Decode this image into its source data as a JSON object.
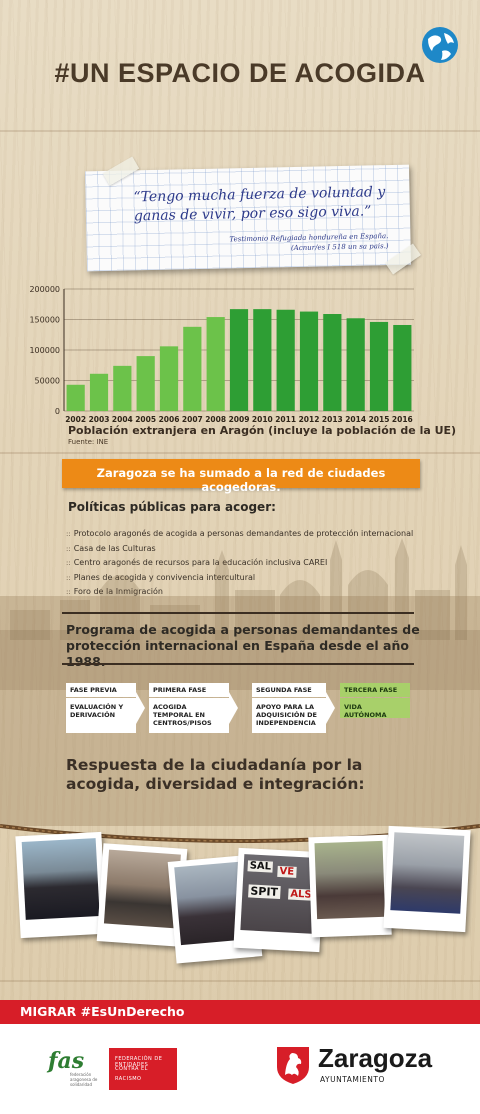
{
  "poster": {
    "title": "#UN ESPACIO DE ACOGIDA",
    "quote": {
      "text": "“Tengo mucha fuerza de voluntad y ganas de vivir, por eso sigo viva.”",
      "source_line1": "Testimonio Refugiada hondureña en España.",
      "source_line2": "(Acnur/es I 518 un sa pais.)"
    },
    "banner": "Zaragoza se ha sumado a la red de ciudades acogedoras.",
    "policies": {
      "title": "Políticas públicas para acoger:",
      "items": [
        "Protocolo aragonés de acogida a personas demandantes de protección internacional",
        "Casa de las Culturas",
        "Centro aragonés de recursos para la educación inclusiva CAREI",
        "Planes de acogida y convivencia intercultural",
        "Foro de la Inmigración"
      ]
    },
    "program": {
      "title": "Programa de acogida a personas demandantes de protección internacional en España desde el año 1988.",
      "phases": [
        {
          "name": "FASE PREVIA",
          "desc": "EVALUACIÓN Y DERIVACIÓN"
        },
        {
          "name": "PRIMERA FASE",
          "desc": "ACOGIDA TEMPORAL EN CENTROS/PISOS"
        },
        {
          "name": "SEGUNDA FASE",
          "desc": "APOYO PARA LA ADQUISICIÓN DE INDEPENDENCIA"
        },
        {
          "name": "TERCERA FASE",
          "desc": "VIDA AUTÓNOMA"
        }
      ]
    },
    "response_title": "Respuesta de la  ciudadanía por la acogida, diversidad e integración:",
    "photo_signs": [
      "SAL",
      "VE",
      "SPIT",
      "ALS"
    ],
    "footer": {
      "hashtag": "MIGRAR #EsUnDerecho",
      "fas_logo": "fas",
      "fas_sub": "federación aragonesa de solidaridad",
      "red_logo_lines": [
        "FEDERACIÓN DE ENTIDADES",
        "CONTRA EL",
        "RACISMO"
      ],
      "city": "Zaragoza",
      "city_sub": "AYUNTAMIENTO"
    },
    "colors": {
      "banner": "#ed8a16",
      "footer_red": "#d71e28",
      "bar_green_dark": "#2e9e34",
      "bar_green_light": "#6cc24a",
      "title_brown": "#4a3a28"
    }
  },
  "chart_data": {
    "type": "bar",
    "title": "Población extranjera en Aragón (incluye la población de la UE)",
    "source": "Fuente: INE",
    "categories": [
      "2002",
      "2003",
      "2004",
      "2005",
      "2006",
      "2007",
      "2008",
      "2009",
      "2010",
      "2011",
      "2012",
      "2013",
      "2014",
      "2015",
      "2016"
    ],
    "values": [
      43000,
      61000,
      74000,
      90000,
      106000,
      138000,
      154000,
      167000,
      167000,
      166000,
      163000,
      159000,
      152000,
      146000,
      141000
    ],
    "ylim": [
      0,
      200000
    ],
    "yticks": [
      "0",
      "50000",
      "100000",
      "150000",
      "200000"
    ],
    "grid": true
  }
}
